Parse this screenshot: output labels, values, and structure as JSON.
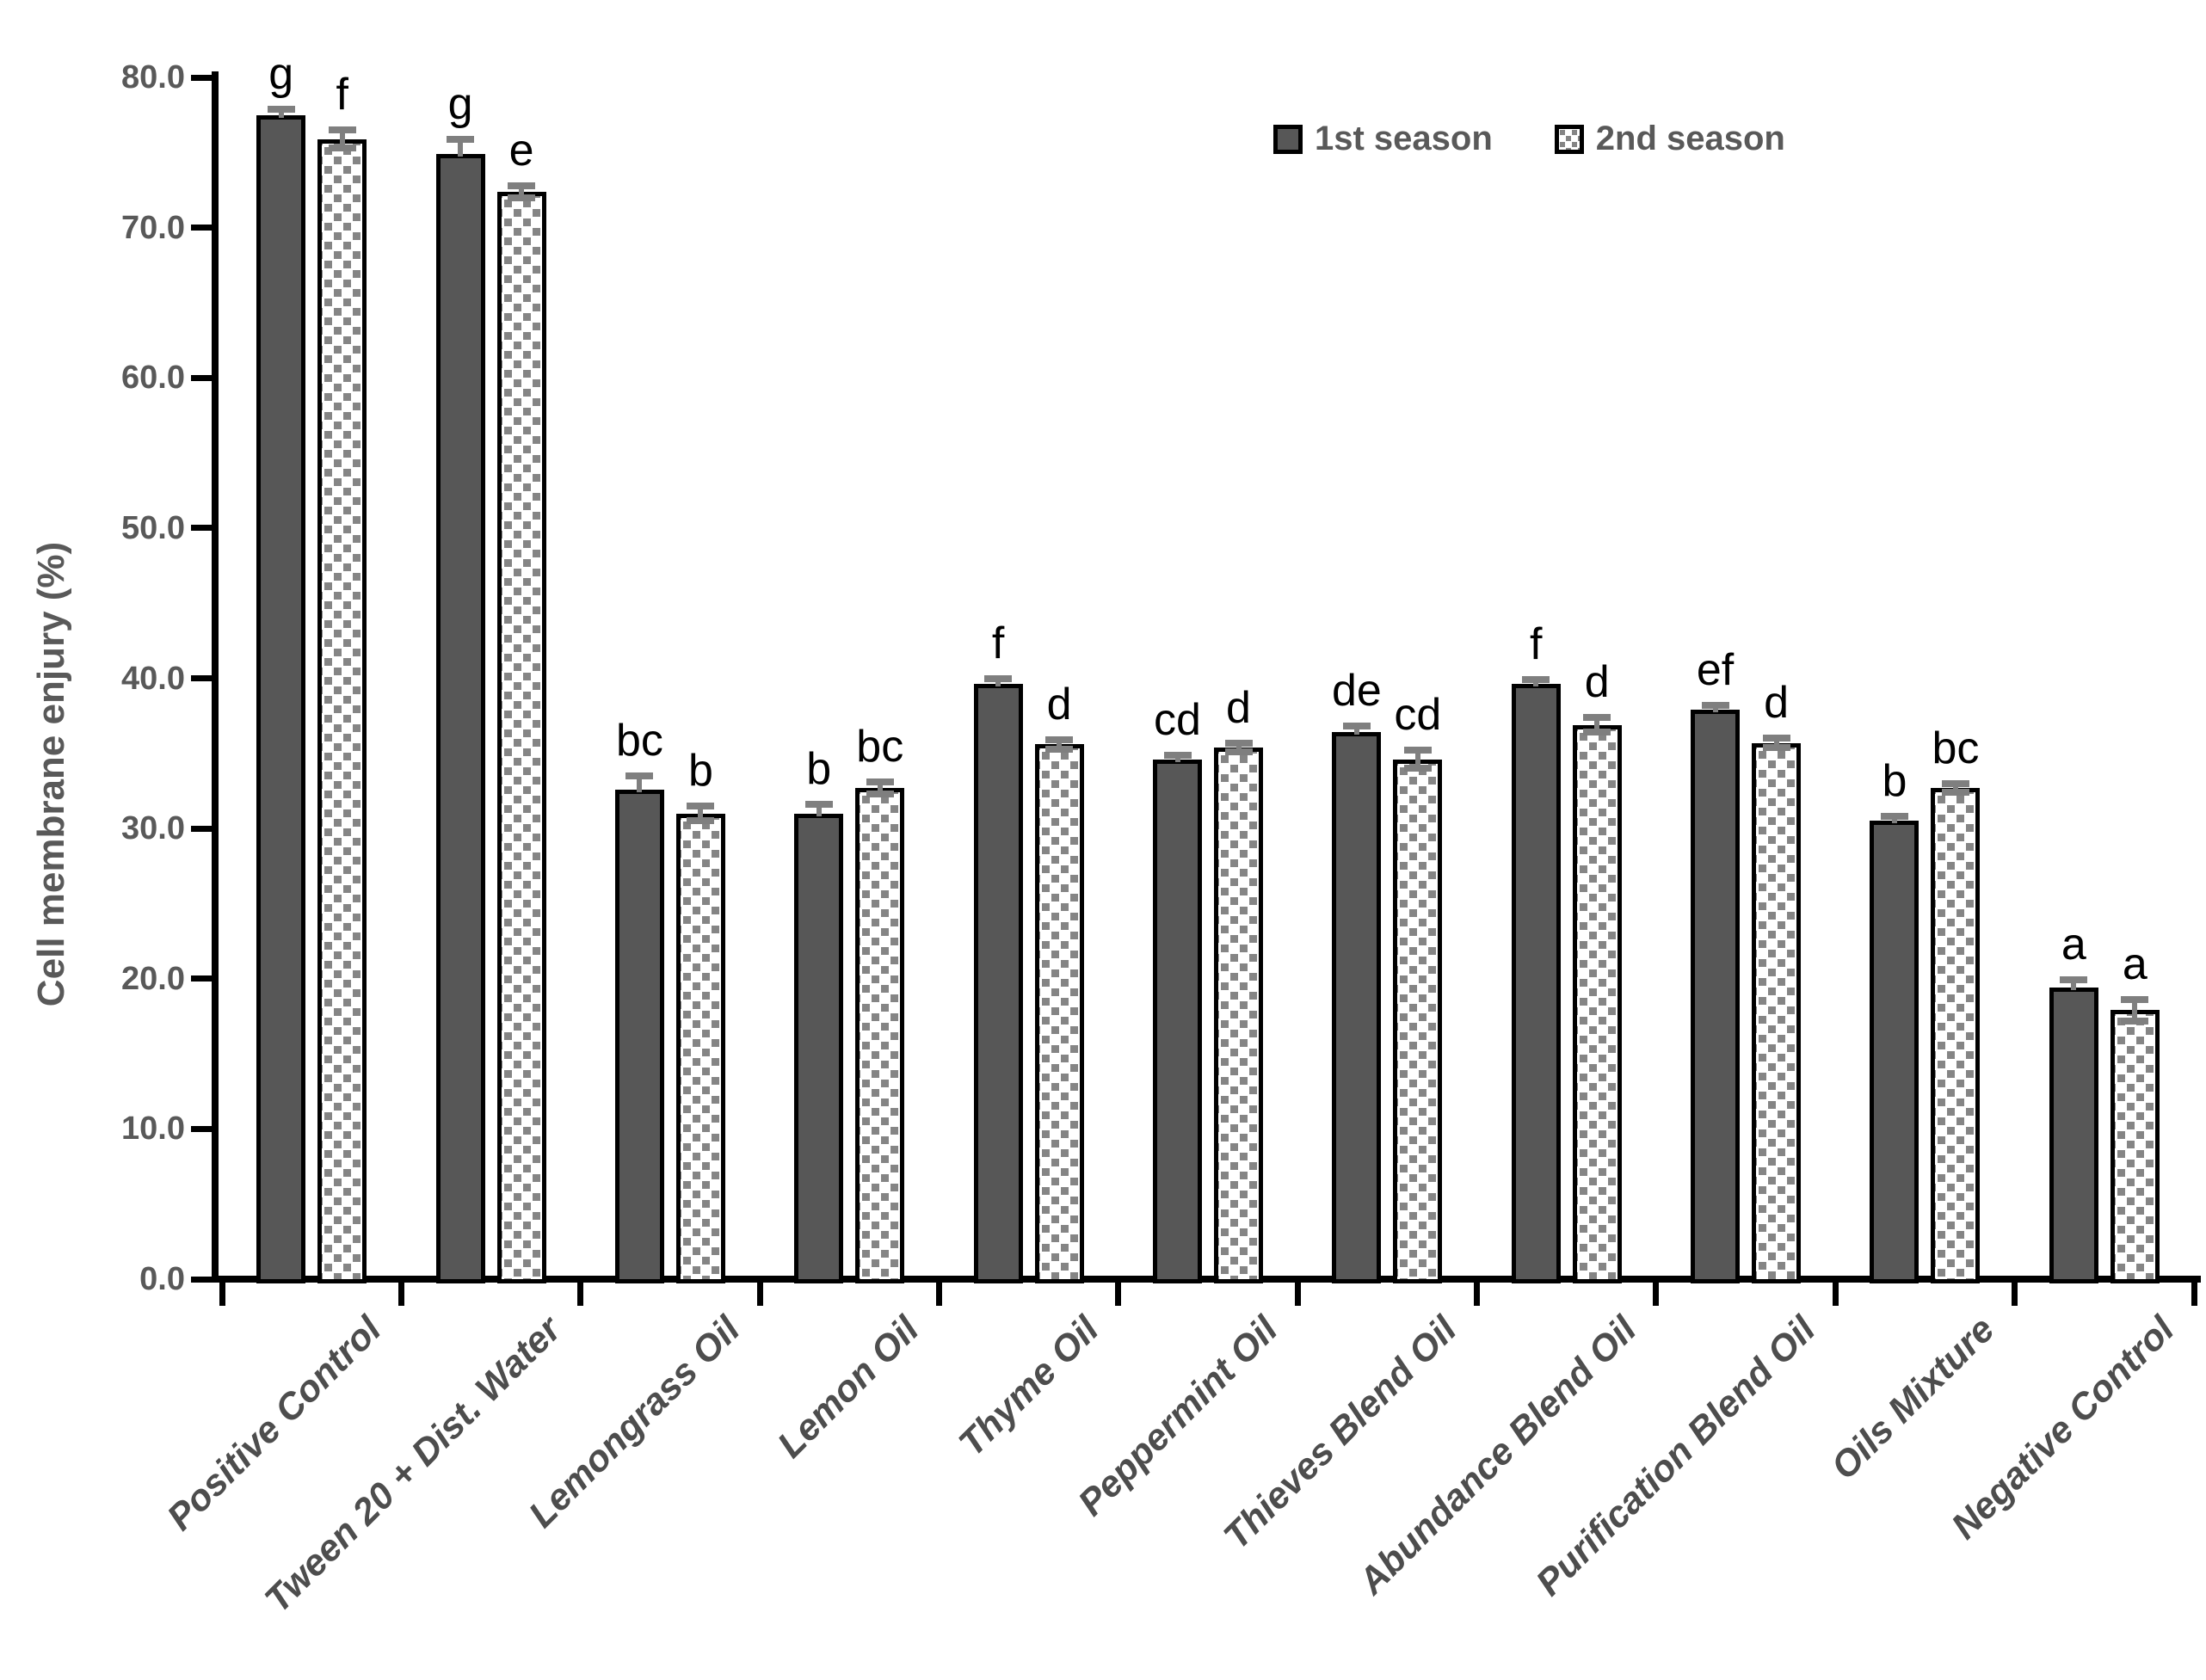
{
  "chart_data": {
    "type": "bar",
    "title": "",
    "xlabel": "",
    "ylabel": "Cell membrane enjury (%)",
    "ylim": [
      0,
      80
    ],
    "ytick_step": 10,
    "ytick_labels": [
      "0.0",
      "10.0",
      "20.0",
      "30.0",
      "40.0",
      "50.0",
      "60.0",
      "70.0",
      "80.0"
    ],
    "grid": false,
    "legend_position": "top-right",
    "axis_color": "#000000",
    "tick_label_color": "#595959",
    "error_bar_color": "#7f7f7f",
    "categories": [
      "Positive Control",
      "Tween 20 + Dist. Water",
      "Lemongrass Oil",
      "Lemon Oil",
      "Thyme Oil",
      "Peppermint Oil",
      "Thieves Blend Oil",
      "Abundance Blend Oil",
      "Purification Blend Oil",
      "Oils Mixture",
      "Negative Control"
    ],
    "series": [
      {
        "name": "1st season",
        "fill": "solid",
        "color": "#575757",
        "values": [
          77.5,
          74.9,
          32.6,
          31.0,
          39.6,
          34.6,
          36.4,
          39.6,
          37.9,
          30.5,
          19.4
        ],
        "errors": [
          0.4,
          1.0,
          0.9,
          0.6,
          0.4,
          0.3,
          0.4,
          0.3,
          0.3,
          0.3,
          0.5
        ],
        "sig_letters": [
          "g",
          "g",
          "bc",
          "b",
          "f",
          "cd",
          "de",
          "f",
          "ef",
          "b",
          "a"
        ]
      },
      {
        "name": "2nd season",
        "fill": "dotted",
        "color": "#ffffff",
        "dot_color": "#858585",
        "values": [
          75.9,
          72.4,
          31.0,
          32.7,
          35.6,
          35.4,
          34.6,
          36.9,
          35.7,
          32.7,
          17.9
        ],
        "errors": [
          0.6,
          0.4,
          0.5,
          0.4,
          0.3,
          0.3,
          0.6,
          0.5,
          0.3,
          0.3,
          0.7
        ],
        "sig_letters": [
          "f",
          "e",
          "b",
          "bc",
          "d",
          "d",
          "cd",
          "d",
          "d",
          "bc",
          "a"
        ]
      }
    ]
  }
}
